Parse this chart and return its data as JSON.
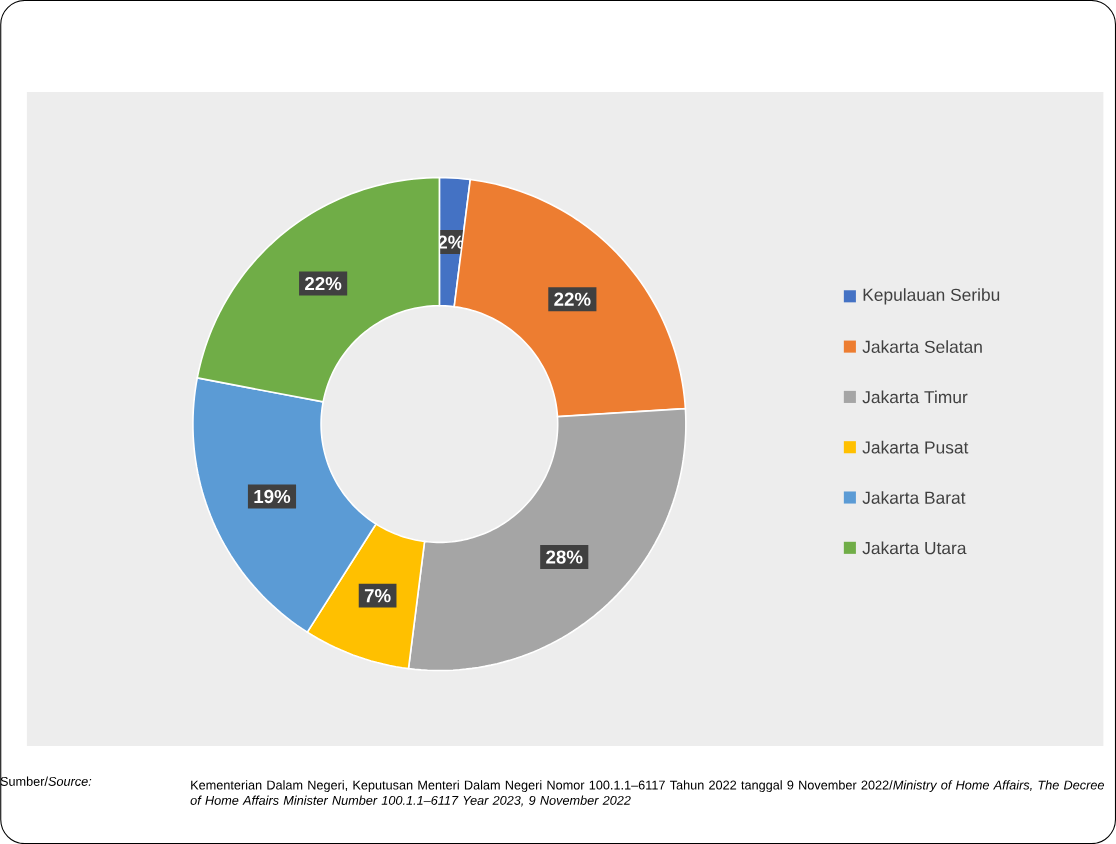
{
  "chart_data": {
    "type": "donut",
    "categories": [
      "Kepulauan Seribu",
      "Jakarta Selatan",
      "Jakarta Timur",
      "Jakarta Pusat",
      "Jakarta Barat",
      "Jakarta Utara"
    ],
    "values": [
      2,
      22,
      28,
      7,
      19,
      22
    ],
    "value_labels": [
      "2%",
      "22%",
      "28%",
      "7%",
      "19%",
      "22%"
    ],
    "colors": [
      "#4472c4",
      "#ed7d31",
      "#a5a5a5",
      "#ffc000",
      "#5b9bd5",
      "#70ad47"
    ],
    "legend": "right",
    "annotations": [
      "Sumber/*Source:*",
      "Kementerian Dalam Negeri, Keputusan Menteri Dalam Negeri Nomor 100.1.1–6117 Tahun 2022 tanggal 9 November 2022/*Ministry of Home Affairs, The Decree of Home Affairs Minister Number 100.1.1–6117 Year 2023, 9 November 2022*"
    ]
  }
}
